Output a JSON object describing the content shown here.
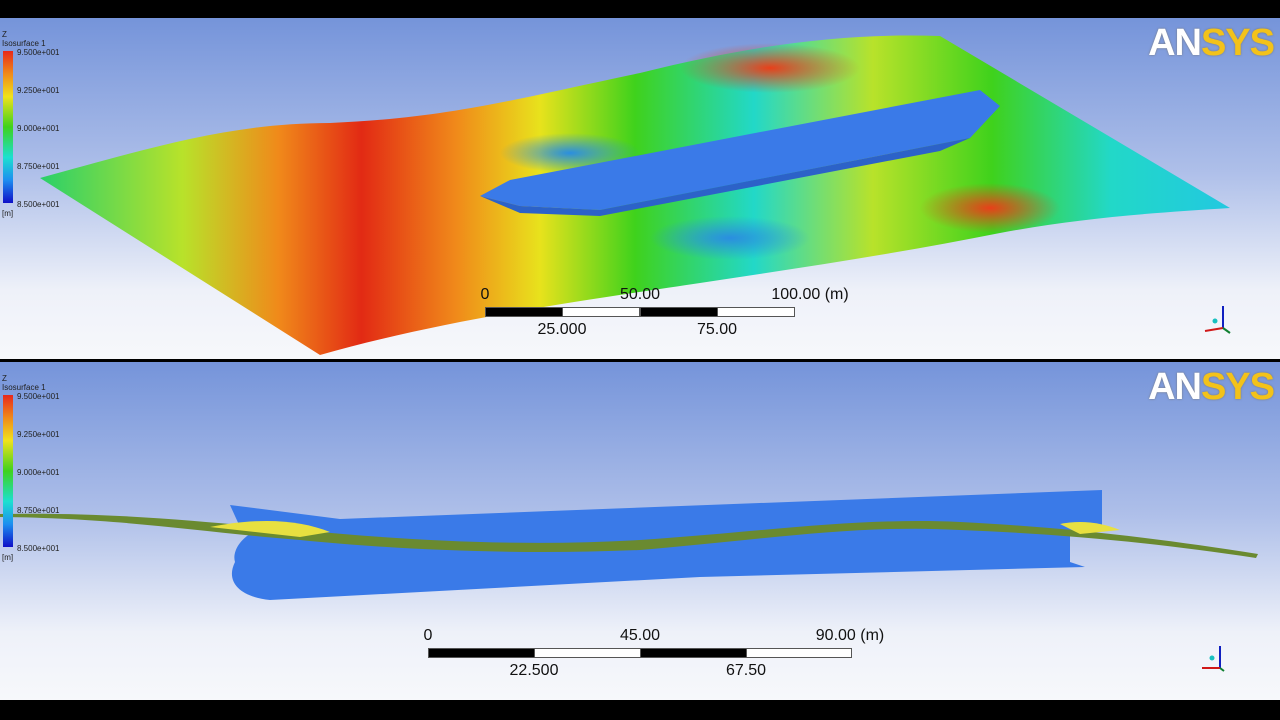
{
  "logo": {
    "text_a": "AN",
    "text_b": "SYS"
  },
  "legend": {
    "axis": "Z",
    "title": "Isosurface 1",
    "ticks": [
      "9.500e+001",
      "9.250e+001",
      "9.000e+001",
      "8.750e+001",
      "8.500e+001"
    ],
    "unit": "[m]"
  },
  "colors": {
    "max": "#e8281c",
    "mid": "#3fd21c",
    "min": "#1010c8",
    "hull": "#3377e6",
    "logo_accent": "#f3c21a"
  },
  "top_view": {
    "scale": {
      "top_labels": [
        "0",
        "50.00",
        "100.00  (m)"
      ],
      "bottom_labels": [
        "25.000",
        "75.00"
      ]
    }
  },
  "side_view": {
    "scale": {
      "top_labels": [
        "0",
        "45.00",
        "90.00  (m)"
      ],
      "bottom_labels": [
        "22.500",
        "67.50"
      ]
    }
  },
  "triad": {
    "x": "X",
    "y": "Y",
    "z": "Z"
  }
}
